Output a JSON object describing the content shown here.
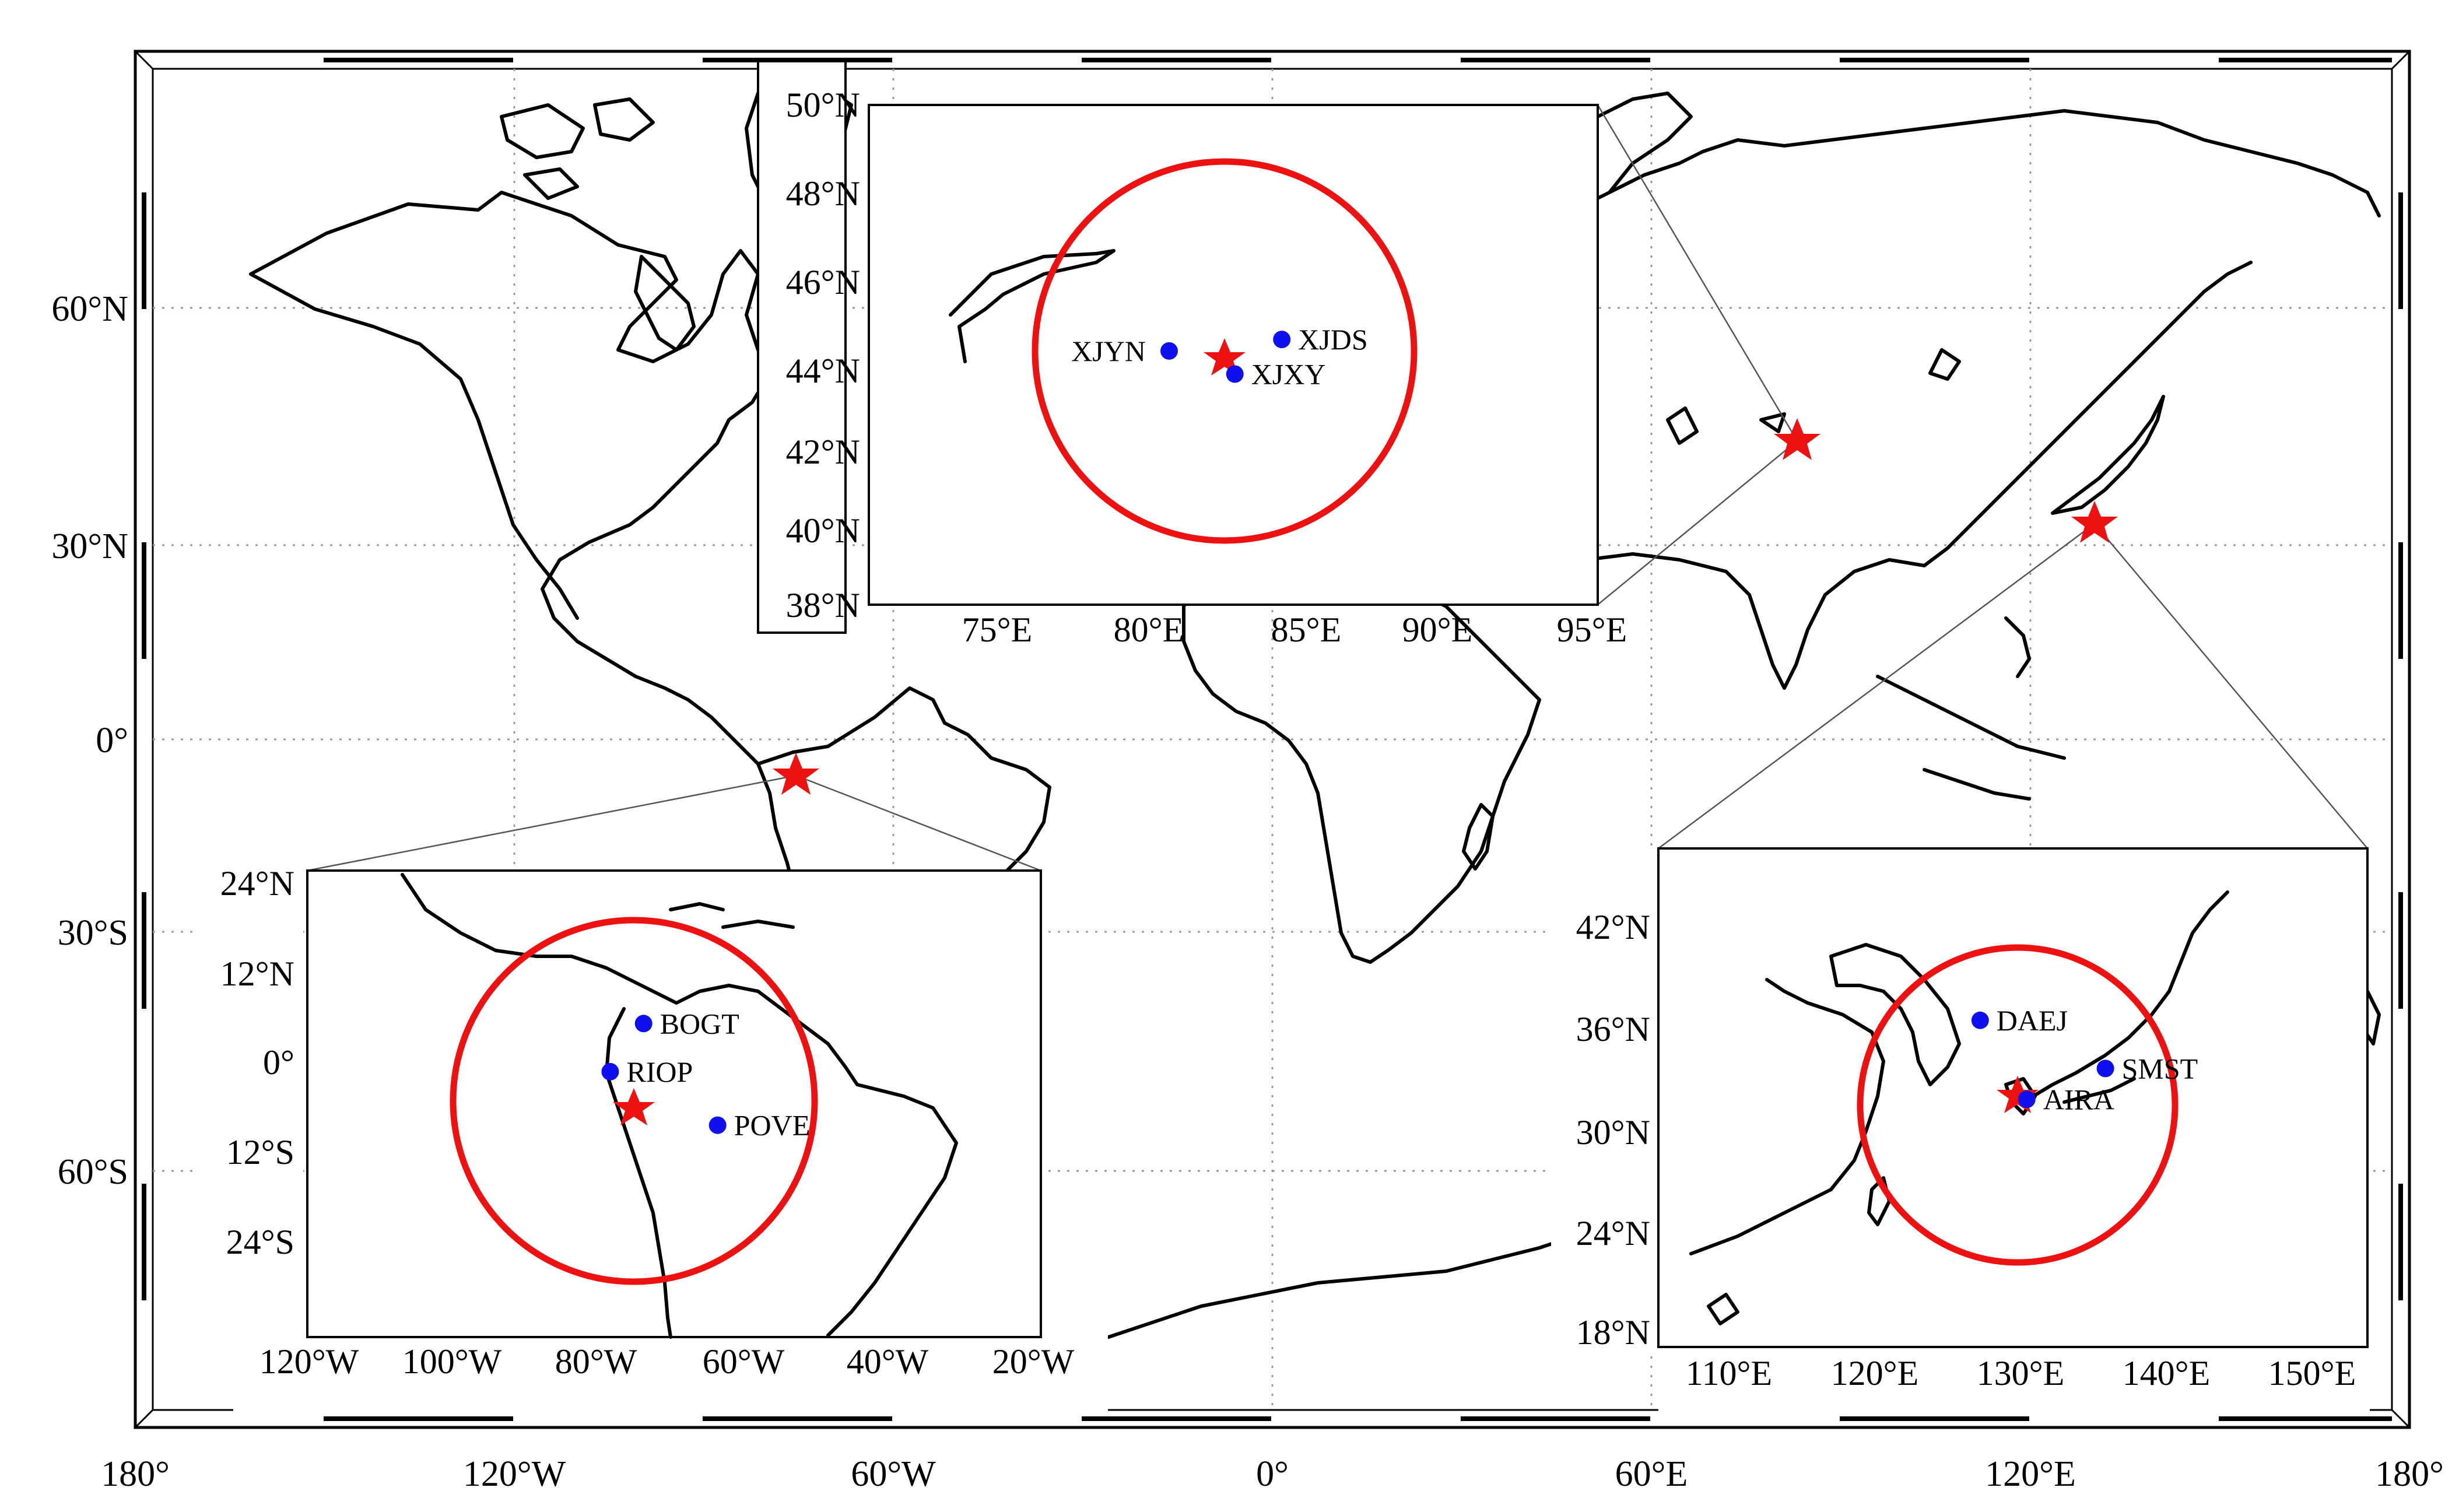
{
  "map": {
    "axes": {
      "lon_labels": [
        "180°",
        "120°W",
        "60°W",
        "0°",
        "60°E",
        "120°E",
        "180°"
      ],
      "lat_labels": [
        "60°N",
        "30°N",
        "0°",
        "30°S",
        "60°S"
      ]
    },
    "stars": [
      {
        "id": "xinjiang",
        "lon": 82.9,
        "lat": 44.3
      },
      {
        "id": "japan",
        "lon": 130.8,
        "lat": 32.8
      },
      {
        "id": "south-america",
        "lon": -75.6,
        "lat": -5.9
      }
    ],
    "insets": {
      "xinjiang": {
        "lat_labels": [
          "50°N",
          "48°N",
          "46°N",
          "44°N",
          "42°N",
          "40°N",
          "38°N"
        ],
        "lon_labels": [
          "75°E",
          "80°E",
          "85°E",
          "90°E",
          "95°E"
        ],
        "stations": [
          {
            "name": "XJYN",
            "lon": 81.3,
            "lat": 44.0
          },
          {
            "name": "XJDS",
            "lon": 84.9,
            "lat": 44.3
          },
          {
            "name": "XJXY",
            "lon": 83.4,
            "lat": 43.4
          }
        ]
      },
      "south_america": {
        "lat_labels": [
          "24°N",
          "12°N",
          "0°",
          "12°S",
          "24°S"
        ],
        "lon_labels": [
          "120°W",
          "100°W",
          "80°W",
          "60°W",
          "40°W",
          "20°W"
        ],
        "stations": [
          {
            "name": "BOGT",
            "lon": -74.1,
            "lat": 4.6
          },
          {
            "name": "RIOP",
            "lon": -78.7,
            "lat": -1.7
          },
          {
            "name": "POVE",
            "lon": -63.9,
            "lat": -8.7
          }
        ]
      },
      "japan": {
        "lat_labels": [
          "42°N",
          "36°N",
          "30°N",
          "24°N",
          "18°N"
        ],
        "lon_labels": [
          "110°E",
          "120°E",
          "130°E",
          "140°E",
          "150°E"
        ],
        "stations": [
          {
            "name": "DAEJ",
            "lon": 127.4,
            "lat": 36.4
          },
          {
            "name": "SMST",
            "lon": 136.0,
            "lat": 33.6
          },
          {
            "name": "AIRA",
            "lon": 130.6,
            "lat": 31.8
          }
        ]
      }
    },
    "colors": {
      "star": "#ee1111",
      "circle": "#ee1111",
      "station": "#1010ee",
      "coast": "#000000",
      "grid": "#9a9a9a"
    }
  }
}
